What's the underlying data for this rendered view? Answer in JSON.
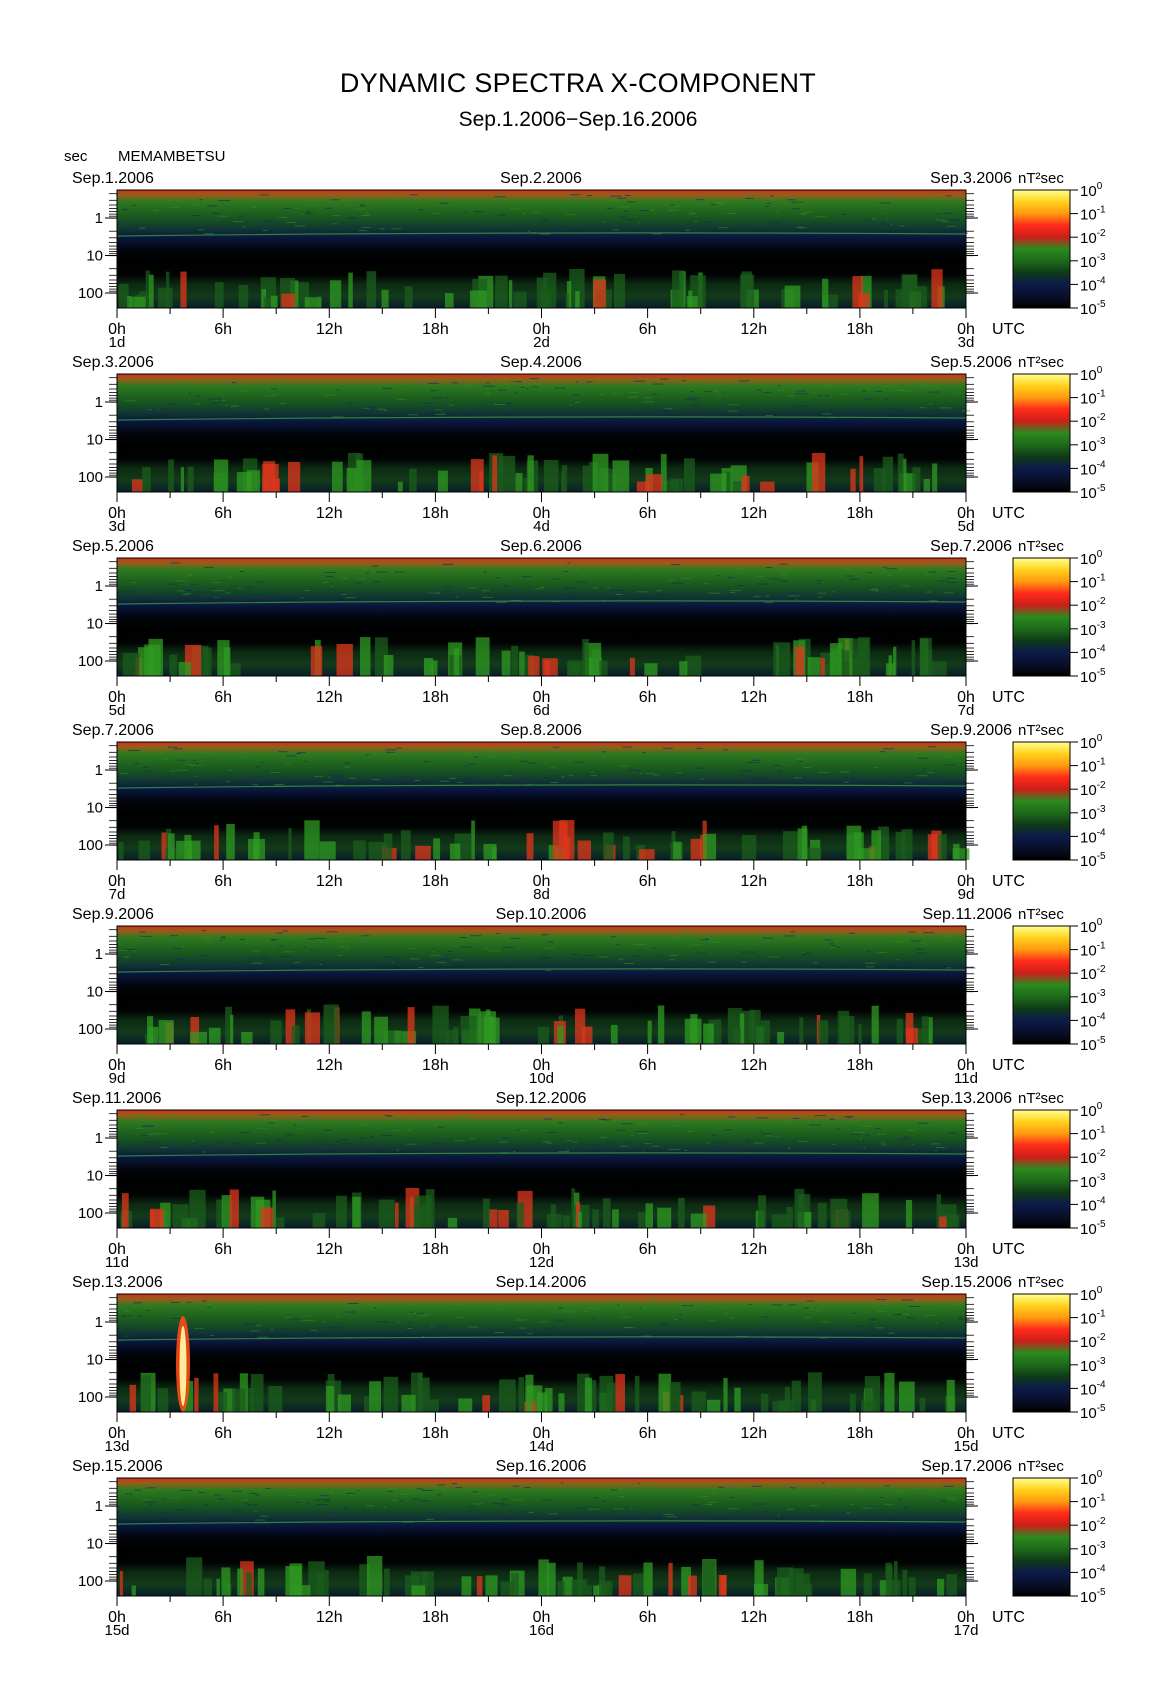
{
  "title": "DYNAMIC SPECTRA X-COMPONENT",
  "subtitle": "Sep.1.2006−Sep.16.2006",
  "station": "MEMAMBETSU",
  "y_unit": "sec",
  "chart_data": {
    "type": "heatmap",
    "description_units": {
      "y": "period (sec)",
      "x": "UTC hour",
      "z": "power (nT² sec)"
    },
    "y_ticks": [
      "1",
      "10",
      "100"
    ],
    "x_ticks": [
      "0h",
      "6h",
      "12h",
      "18h",
      "0h",
      "6h",
      "12h",
      "18h",
      "0h"
    ],
    "x_axis_label": "UTC",
    "colorbar": {
      "label": "nT²sec",
      "ticks": [
        {
          "base": "10",
          "exp": "0"
        },
        {
          "base": "10",
          "exp": "-1"
        },
        {
          "base": "10",
          "exp": "-2"
        },
        {
          "base": "10",
          "exp": "-3"
        },
        {
          "base": "10",
          "exp": "-4"
        },
        {
          "base": "10",
          "exp": "-5"
        }
      ],
      "colors": [
        "#ffff90",
        "#ffd21c",
        "#ff9a10",
        "#ff2a1a",
        "#cc1f1a",
        "#2c8a1e",
        "#1d6a1a",
        "#0f3a18",
        "#0c1a4a",
        "#0a0f2a",
        "#000000"
      ]
    },
    "panels": [
      {
        "left_date": "Sep.1.2006",
        "mid_date": "Sep.2.2006",
        "right_date": "Sep.3.2006",
        "day_labels": [
          "1d",
          "2d",
          "3d"
        ]
      },
      {
        "left_date": "Sep.3.2006",
        "mid_date": "Sep.4.2006",
        "right_date": "Sep.5.2006",
        "day_labels": [
          "3d",
          "4d",
          "5d"
        ]
      },
      {
        "left_date": "Sep.5.2006",
        "mid_date": "Sep.6.2006",
        "right_date": "Sep.7.2006",
        "day_labels": [
          "5d",
          "6d",
          "7d"
        ]
      },
      {
        "left_date": "Sep.7.2006",
        "mid_date": "Sep.8.2006",
        "right_date": "Sep.9.2006",
        "day_labels": [
          "7d",
          "8d",
          "9d"
        ]
      },
      {
        "left_date": "Sep.9.2006",
        "mid_date": "Sep.10.2006",
        "right_date": "Sep.11.2006",
        "day_labels": [
          "9d",
          "10d",
          "11d"
        ]
      },
      {
        "left_date": "Sep.11.2006",
        "mid_date": "Sep.12.2006",
        "right_date": "Sep.13.2006",
        "day_labels": [
          "11d",
          "12d",
          "13d"
        ]
      },
      {
        "left_date": "Sep.13.2006",
        "mid_date": "Sep.14.2006",
        "right_date": "Sep.15.2006",
        "day_labels": [
          "13d",
          "14d",
          "15d"
        ]
      },
      {
        "left_date": "Sep.15.2006",
        "mid_date": "Sep.16.2006",
        "right_date": "Sep.17.2006",
        "day_labels": [
          "15d",
          "16d",
          "17d"
        ]
      }
    ]
  }
}
